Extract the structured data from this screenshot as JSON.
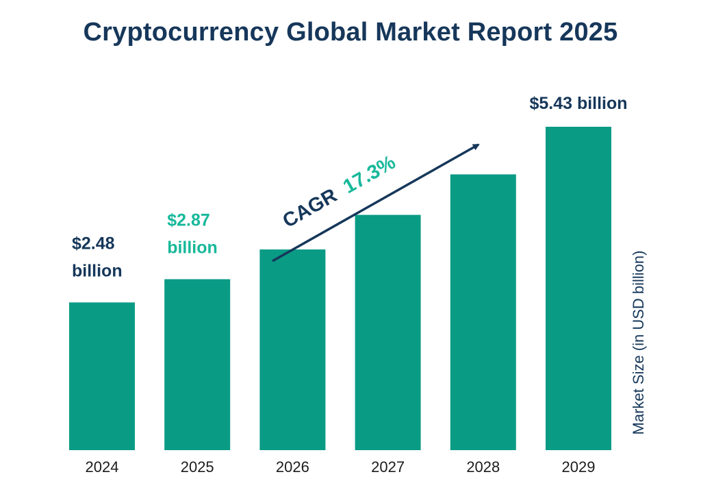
{
  "colors": {
    "bar": "#0a9b85",
    "title": "#16375a",
    "label_dark": "#16375a",
    "label_accent": "#17b89a",
    "axis_text": "#1c1c1c"
  },
  "chart_data": {
    "type": "bar",
    "title": "Cryptocurrency Global Market Report 2025",
    "xlabel": "",
    "ylabel": "Market Size (in USD billion)",
    "categories": [
      "2024",
      "2025",
      "2026",
      "2027",
      "2028",
      "2029"
    ],
    "values": [
      2.48,
      2.87,
      3.37,
      3.95,
      4.63,
      5.43
    ],
    "ylim": [
      0,
      5.43
    ],
    "grid": false,
    "data_labels": [
      {
        "category": "2024",
        "lines": [
          "$2.48",
          "billion"
        ],
        "color": "dark"
      },
      {
        "category": "2025",
        "lines": [
          "$2.87",
          "billion"
        ],
        "color": "accent"
      },
      {
        "category": "2029",
        "lines": [
          "$5.43 billion"
        ],
        "color": "dark"
      }
    ],
    "annotation": {
      "prefix": "CAGR",
      "value": "17.3%"
    }
  }
}
